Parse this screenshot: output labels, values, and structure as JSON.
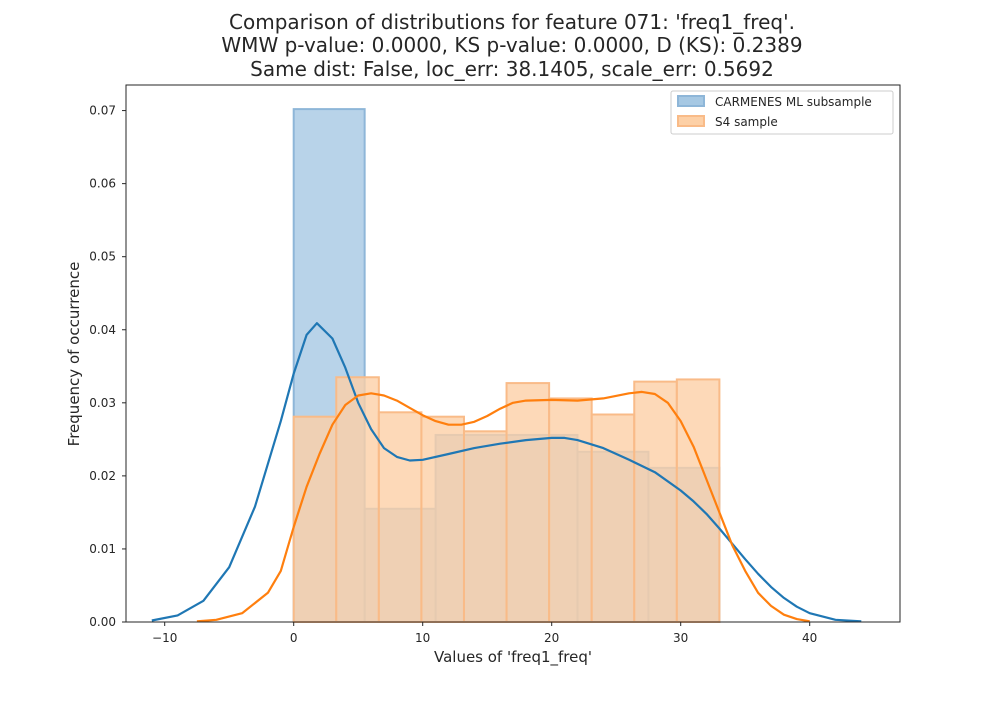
{
  "chart_data": {
    "type": "histogram+kde",
    "title_lines": [
      "Comparison of distributions for feature 071: 'freq1_freq'.",
      "WMW p-value: 0.0000, KS p-value: 0.0000, D (KS): 0.2389",
      "Same dist: False, loc_err: 38.1405, scale_err: 0.5692"
    ],
    "xlabel": "Values of 'freq1_freq'",
    "ylabel": "Frequency of occurrence",
    "xlim": [
      -13,
      47
    ],
    "ylim": [
      0,
      0.0735
    ],
    "xticks": [
      -10,
      0,
      10,
      20,
      30,
      40
    ],
    "yticks": [
      0.0,
      0.01,
      0.02,
      0.03,
      0.04,
      0.05,
      0.06,
      0.07
    ],
    "ytick_labels": [
      "0.00",
      "0.01",
      "0.02",
      "0.03",
      "0.04",
      "0.05",
      "0.06",
      "0.07"
    ],
    "grid": false,
    "legend_position": "top-right",
    "series": [
      {
        "name": "CARMENES ML subsample",
        "color": "#1f77b4",
        "fill_color": "#a6c8e3",
        "bins": [
          {
            "x0": 0.0,
            "x1": 5.5,
            "y": 0.0702
          },
          {
            "x0": 5.5,
            "x1": 11.0,
            "y": 0.0155
          },
          {
            "x0": 11.0,
            "x1": 16.5,
            "y": 0.0256
          },
          {
            "x0": 16.5,
            "x1": 22.0,
            "y": 0.0256
          },
          {
            "x0": 22.0,
            "x1": 27.5,
            "y": 0.0233
          },
          {
            "x0": 27.5,
            "x1": 33.0,
            "y": 0.0211
          }
        ],
        "kde": [
          [
            -11,
            0.0002
          ],
          [
            -9,
            0.0009
          ],
          [
            -7,
            0.0029
          ],
          [
            -5,
            0.0075
          ],
          [
            -3,
            0.0158
          ],
          [
            -1,
            0.0275
          ],
          [
            0,
            0.034
          ],
          [
            1,
            0.0393
          ],
          [
            1.8,
            0.0409
          ],
          [
            3,
            0.0388
          ],
          [
            4,
            0.0348
          ],
          [
            5,
            0.03
          ],
          [
            6,
            0.0264
          ],
          [
            7,
            0.0238
          ],
          [
            8,
            0.0226
          ],
          [
            9,
            0.0221
          ],
          [
            10,
            0.0222
          ],
          [
            12,
            0.023
          ],
          [
            14,
            0.0238
          ],
          [
            16,
            0.0244
          ],
          [
            18,
            0.0249
          ],
          [
            20,
            0.0252
          ],
          [
            21,
            0.0252
          ],
          [
            22,
            0.0249
          ],
          [
            24,
            0.0238
          ],
          [
            26,
            0.0222
          ],
          [
            28,
            0.0205
          ],
          [
            30,
            0.018
          ],
          [
            31,
            0.0165
          ],
          [
            32,
            0.0148
          ],
          [
            33,
            0.0128
          ],
          [
            34,
            0.0107
          ],
          [
            35,
            0.0086
          ],
          [
            36,
            0.0066
          ],
          [
            37,
            0.0048
          ],
          [
            38,
            0.0033
          ],
          [
            39,
            0.0021
          ],
          [
            40,
            0.0012
          ],
          [
            42,
            0.0003
          ],
          [
            44,
            0.0001
          ]
        ]
      },
      {
        "name": "S4 sample",
        "color": "#ff7f0e",
        "fill_color": "#fdd0a6",
        "bins": [
          {
            "x0": 0.0,
            "x1": 3.3,
            "y": 0.0281
          },
          {
            "x0": 3.3,
            "x1": 6.6,
            "y": 0.0335
          },
          {
            "x0": 6.6,
            "x1": 9.9,
            "y": 0.0287
          },
          {
            "x0": 9.9,
            "x1": 13.2,
            "y": 0.0281
          },
          {
            "x0": 13.2,
            "x1": 16.5,
            "y": 0.0261
          },
          {
            "x0": 16.5,
            "x1": 19.8,
            "y": 0.0327
          },
          {
            "x0": 19.8,
            "x1": 23.1,
            "y": 0.0306
          },
          {
            "x0": 23.1,
            "x1": 26.4,
            "y": 0.0284
          },
          {
            "x0": 26.4,
            "x1": 29.7,
            "y": 0.0329
          },
          {
            "x0": 29.7,
            "x1": 33.0,
            "y": 0.0332
          }
        ],
        "kde": [
          [
            -7.5,
            0.0001
          ],
          [
            -6,
            0.0003
          ],
          [
            -4,
            0.0012
          ],
          [
            -2,
            0.004
          ],
          [
            -1,
            0.007
          ],
          [
            0,
            0.013
          ],
          [
            1,
            0.0185
          ],
          [
            2,
            0.023
          ],
          [
            3,
            0.027
          ],
          [
            4,
            0.0297
          ],
          [
            5,
            0.031
          ],
          [
            6,
            0.0313
          ],
          [
            7,
            0.031
          ],
          [
            8,
            0.0303
          ],
          [
            9,
            0.0293
          ],
          [
            10,
            0.0283
          ],
          [
            11,
            0.0275
          ],
          [
            12,
            0.027
          ],
          [
            13,
            0.027
          ],
          [
            14,
            0.0274
          ],
          [
            15,
            0.0282
          ],
          [
            16,
            0.0292
          ],
          [
            17,
            0.03
          ],
          [
            18,
            0.0303
          ],
          [
            20,
            0.0304
          ],
          [
            22,
            0.0303
          ],
          [
            24,
            0.0306
          ],
          [
            26,
            0.0313
          ],
          [
            27,
            0.0315
          ],
          [
            28,
            0.0312
          ],
          [
            29,
            0.03
          ],
          [
            30,
            0.0275
          ],
          [
            31,
            0.024
          ],
          [
            32,
            0.0195
          ],
          [
            33,
            0.015
          ],
          [
            34,
            0.0105
          ],
          [
            35,
            0.007
          ],
          [
            36,
            0.004
          ],
          [
            37,
            0.0022
          ],
          [
            38,
            0.001
          ],
          [
            39,
            0.0004
          ],
          [
            40,
            0.0001
          ]
        ]
      }
    ]
  }
}
